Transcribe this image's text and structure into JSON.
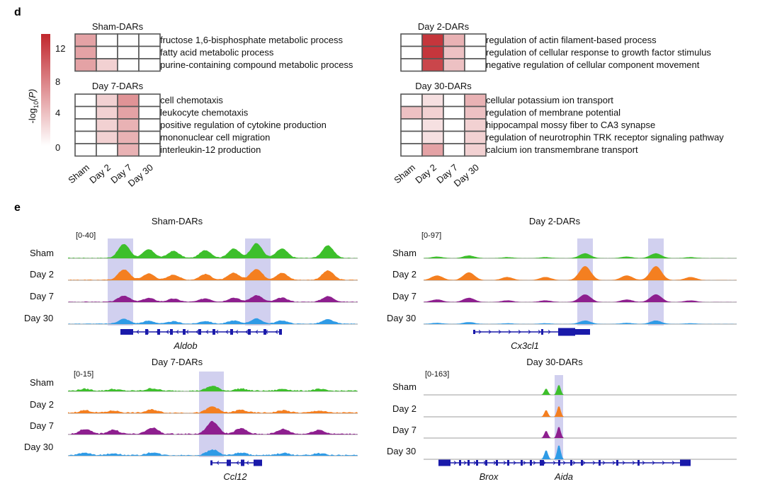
{
  "panel_d": {
    "letter": "d",
    "colorbar": {
      "label_prefix": "-log",
      "label_sub": "10",
      "label_var": "(P)",
      "ticks": [
        "12",
        "8",
        "4",
        "0"
      ],
      "tick_values": [
        12,
        8,
        4,
        0
      ],
      "max": 14,
      "color_low": "#ffffff",
      "color_high": "#c1272d"
    },
    "columns": [
      "Sham",
      "Day 2",
      "Day 7",
      "Day 30"
    ],
    "heatmaps": [
      {
        "title": "Sham-DARs",
        "rows": [
          {
            "term": "fructose 1,6-bisphosphate metabolic process",
            "values": [
              6,
              0,
              0,
              0
            ]
          },
          {
            "term": "fatty acid metabolic process",
            "values": [
              6,
              0,
              0,
              0
            ]
          },
          {
            "term": "purine-containing compound metabolic process",
            "values": [
              6,
              3,
              0,
              0
            ]
          }
        ]
      },
      {
        "title": "Day 2-DARs",
        "rows": [
          {
            "term": "regulation of actin filament-based process",
            "values": [
              0,
              13,
              5,
              0
            ]
          },
          {
            "term": "regulation of cellular response to growth factor stimulus",
            "values": [
              0,
              13,
              4,
              0
            ]
          },
          {
            "term": "negative regulation of cellular component movement",
            "values": [
              0,
              12,
              4,
              0
            ]
          }
        ]
      },
      {
        "title": "Day 7-DARs",
        "rows": [
          {
            "term": "cell chemotaxis",
            "values": [
              0,
              3,
              7,
              0
            ]
          },
          {
            "term": "leukocyte chemotaxis",
            "values": [
              0,
              3,
              6,
              0
            ]
          },
          {
            "term": "positive regulation of cytokine production",
            "values": [
              0,
              3,
              5,
              0
            ]
          },
          {
            "term": "mononuclear cell migration",
            "values": [
              0,
              3,
              5,
              0
            ]
          },
          {
            "term": "interleukin-12 production",
            "values": [
              0,
              0,
              5,
              0
            ]
          }
        ]
      },
      {
        "title": "Day 30-DARs",
        "rows": [
          {
            "term": "cellular potassium ion transport",
            "values": [
              0,
              2,
              0,
              5
            ]
          },
          {
            "term": "regulation of membrane potential",
            "values": [
              4,
              3,
              0,
              4
            ]
          },
          {
            "term": "hippocampal mossy fiber to CA3 synapse",
            "values": [
              0,
              2,
              0,
              3
            ]
          },
          {
            "term": "regulation of neurotrophin TRK receptor signaling pathway",
            "values": [
              0,
              2,
              0,
              3
            ]
          },
          {
            "term": "calcium ion transmembrane transport",
            "values": [
              0,
              6,
              0,
              3
            ]
          }
        ]
      }
    ]
  },
  "panel_e": {
    "letter": "e",
    "samples": [
      "Sham",
      "Day 2",
      "Day 7",
      "Day 30"
    ],
    "sample_colors": [
      "#3dbf2b",
      "#f47f20",
      "#8e1f8f",
      "#2f9be6"
    ],
    "highlight_color": "#c9c8ec",
    "gene_color": "#1a1aaa",
    "tracks": [
      {
        "title": "Sham-DARs",
        "range": "[0-40]",
        "genes": [
          "Aldob"
        ]
      },
      {
        "title": "Day 2-DARs",
        "range": "[0-97]",
        "genes": [
          "Cx3cl1"
        ]
      },
      {
        "title": "Day 7-DARs",
        "range": "[0-15]",
        "genes": [
          "Ccl12"
        ]
      },
      {
        "title": "Day 30-DARs",
        "range": "[0-163]",
        "genes": [
          "Brox",
          "Aida"
        ]
      }
    ]
  }
}
